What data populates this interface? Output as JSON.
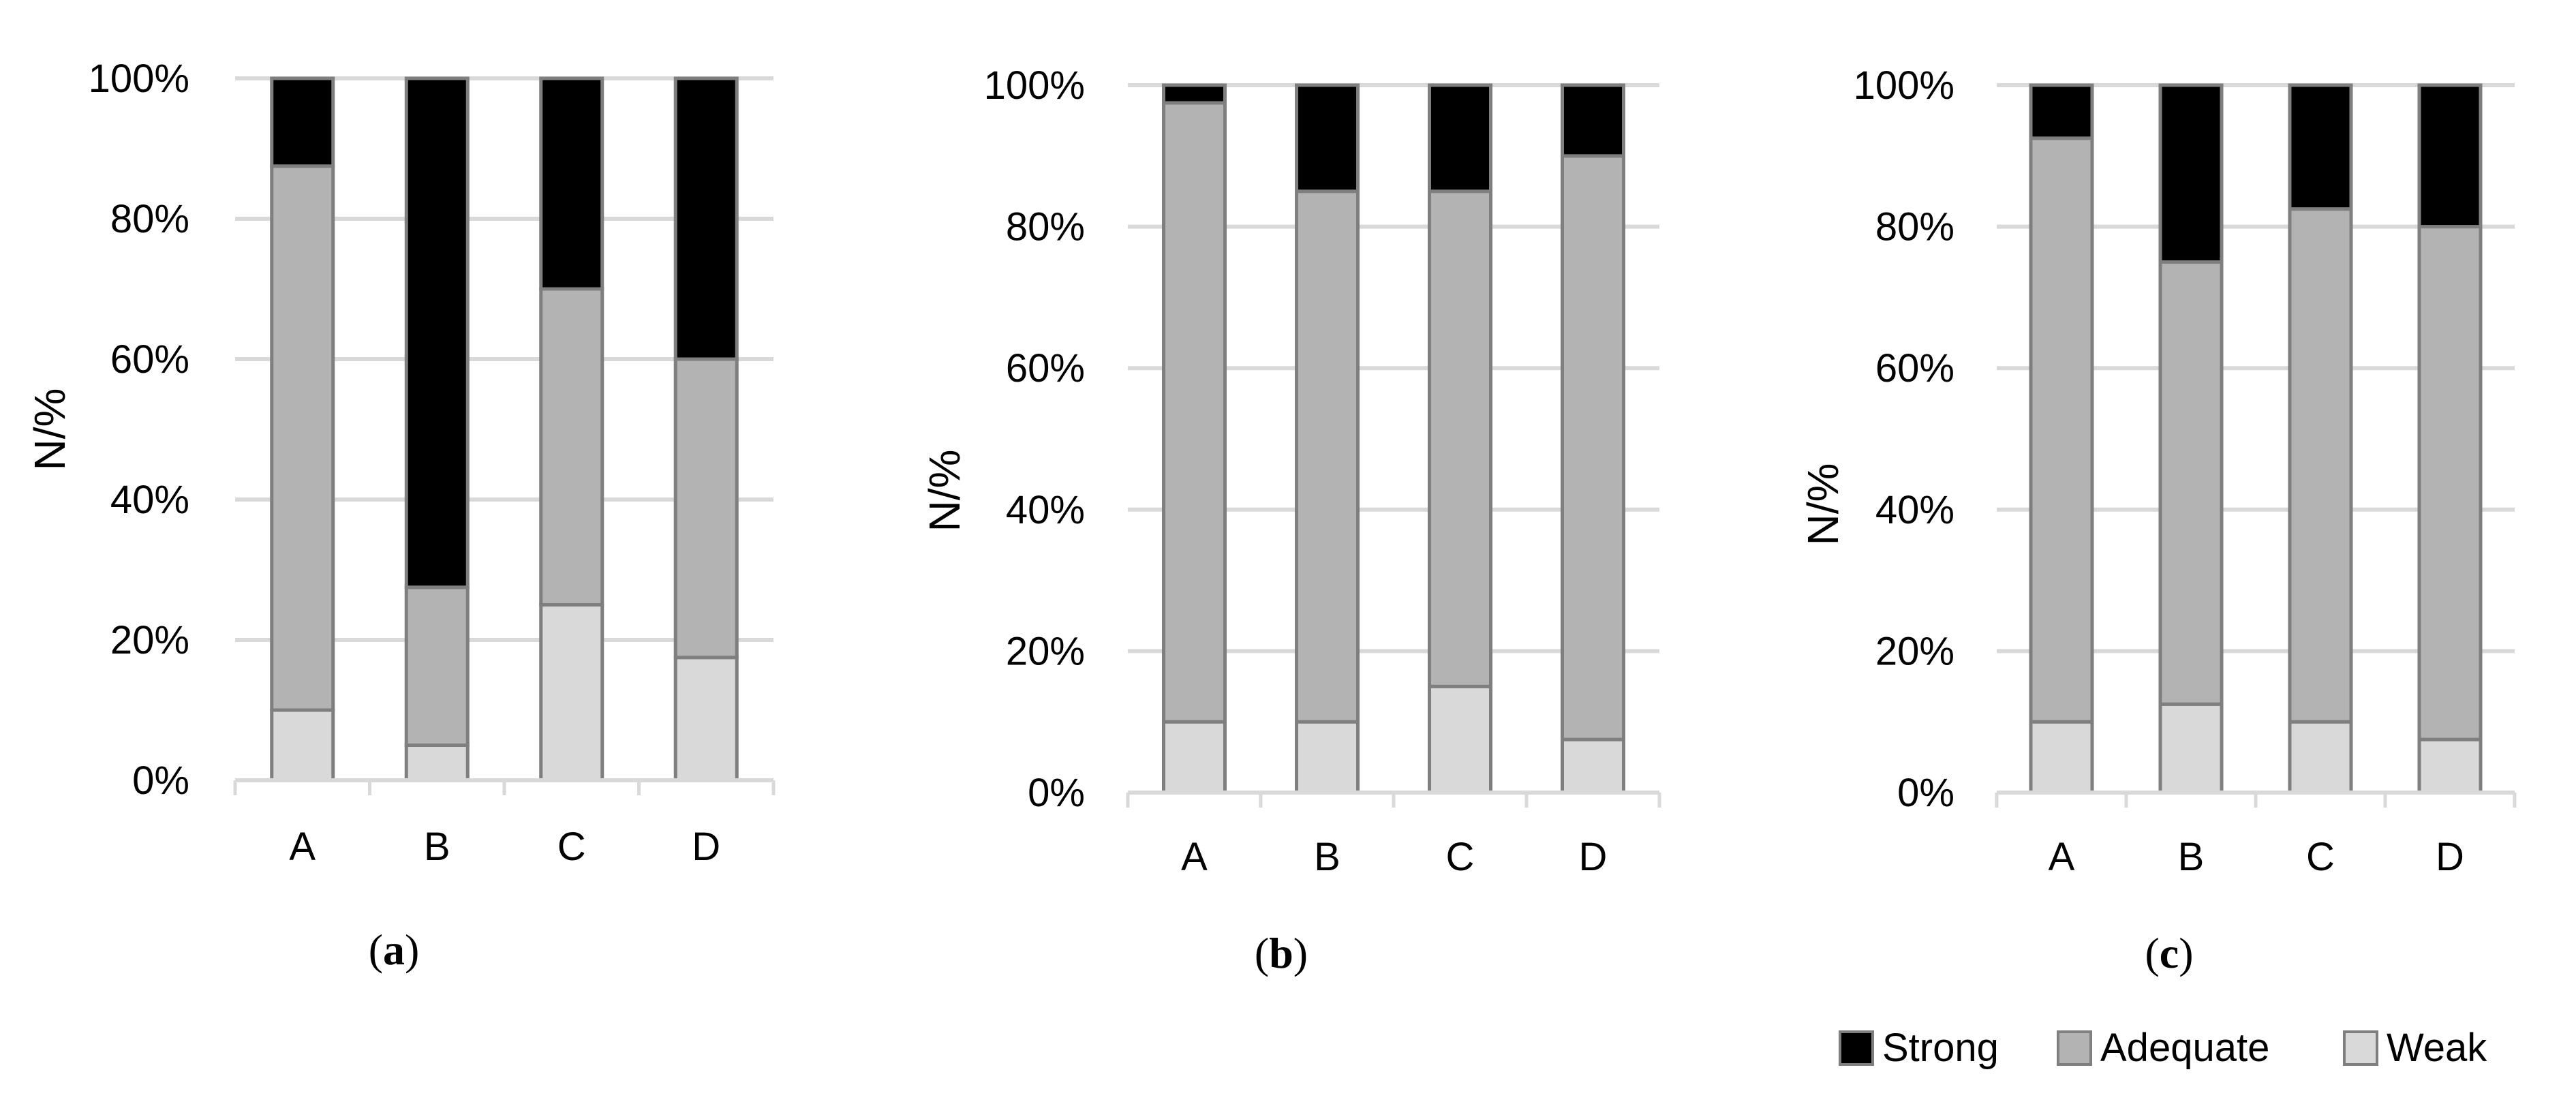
{
  "colors": {
    "Strong": "#000000",
    "Adequate": "#b3b3b3",
    "Weak": "#d9d9d9",
    "bar_outline": "#7f7f7f",
    "gridline": "#d9d9d9"
  },
  "legend": {
    "placement": "bottom-right",
    "entries": [
      "Strong",
      "Adequate",
      "Weak"
    ]
  },
  "chart_data": [
    {
      "type": "bar",
      "stacked": true,
      "panel_label": {
        "open": "(",
        "letter": "a",
        "close": ")"
      },
      "ylabel": "N/%",
      "ylim": [
        0,
        100
      ],
      "yticks": [
        "0%",
        "20%",
        "40%",
        "60%",
        "80%",
        "100%"
      ],
      "grid": true,
      "categories": [
        "A",
        "B",
        "C",
        "D"
      ],
      "series": [
        {
          "name": "Weak",
          "values": [
            10,
            5,
            25,
            17.5
          ]
        },
        {
          "name": "Adequate",
          "values": [
            77.5,
            22.5,
            45,
            42.5
          ]
        },
        {
          "name": "Strong",
          "values": [
            12.5,
            72.5,
            30,
            40
          ]
        }
      ]
    },
    {
      "type": "bar",
      "stacked": true,
      "panel_label": {
        "open": "(",
        "letter": "b",
        "close": ")"
      },
      "ylabel": "N/%",
      "ylim": [
        0,
        100
      ],
      "yticks": [
        "0%",
        "20%",
        "40%",
        "60%",
        "80%",
        "100%"
      ],
      "grid": true,
      "categories": [
        "A",
        "B",
        "C",
        "D"
      ],
      "series": [
        {
          "name": "Weak",
          "values": [
            10,
            10,
            15,
            7.5
          ]
        },
        {
          "name": "Adequate",
          "values": [
            87.5,
            75,
            70,
            82.5
          ]
        },
        {
          "name": "Strong",
          "values": [
            2.5,
            15,
            15,
            10
          ]
        }
      ]
    },
    {
      "type": "bar",
      "stacked": true,
      "panel_label": {
        "open": "(",
        "letter": "c",
        "close": ")"
      },
      "ylabel": "N/%",
      "ylim": [
        0,
        100
      ],
      "yticks": [
        "0%",
        "20%",
        "40%",
        "60%",
        "80%",
        "100%"
      ],
      "grid": true,
      "categories": [
        "A",
        "B",
        "C",
        "D"
      ],
      "series": [
        {
          "name": "Weak",
          "values": [
            10,
            12.5,
            10,
            7.5
          ]
        },
        {
          "name": "Adequate",
          "values": [
            82.5,
            62.5,
            72.5,
            72.5
          ]
        },
        {
          "name": "Strong",
          "values": [
            7.5,
            25,
            17.5,
            20
          ]
        }
      ]
    }
  ]
}
